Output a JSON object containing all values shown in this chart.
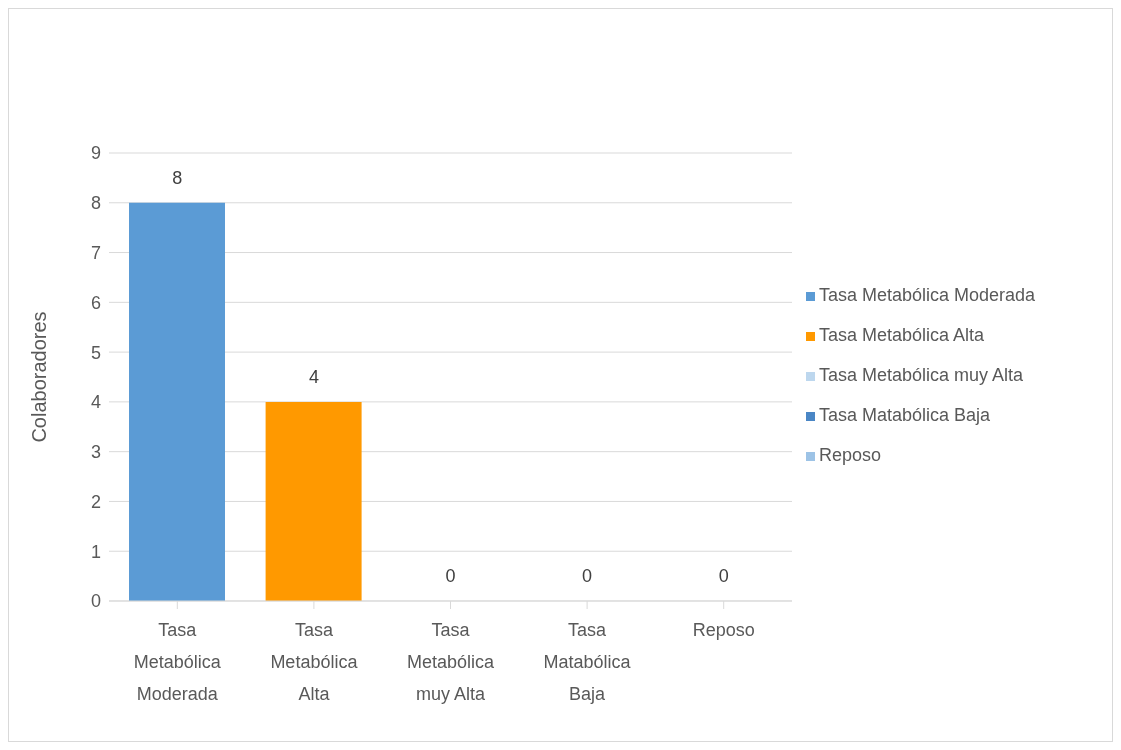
{
  "chart_data": {
    "type": "bar",
    "ylabel": "Colaboradores",
    "categories": [
      "Tasa Metabólica Moderada",
      "Tasa Metabólica Alta",
      "Tasa Metabólica muy Alta",
      "Tasa Matabólica Baja",
      "Reposo"
    ],
    "series": [
      {
        "name": "Tasa Metabólica Moderada",
        "color": "#5b9bd5",
        "values": [
          8,
          null,
          null,
          null,
          null
        ]
      },
      {
        "name": "Tasa Metabólica Alta",
        "color": "#ff9900",
        "values": [
          null,
          4,
          null,
          null,
          null
        ]
      },
      {
        "name": "Tasa Metabólica muy Alta",
        "color": "#bdd7ee",
        "values": [
          null,
          null,
          0,
          null,
          null
        ]
      },
      {
        "name": "Tasa Matabólica Baja",
        "color": "#4a86c5",
        "values": [
          null,
          null,
          null,
          0,
          null
        ]
      },
      {
        "name": "Reposo",
        "color": "#9dc3e6",
        "values": [
          null,
          null,
          null,
          null,
          0
        ]
      }
    ],
    "stacked": true,
    "ylim": [
      0,
      9
    ],
    "yticks": [
      0,
      1,
      2,
      3,
      4,
      5,
      6,
      7,
      8,
      9
    ],
    "grid": "y",
    "legend": "right",
    "data_labels": true
  }
}
